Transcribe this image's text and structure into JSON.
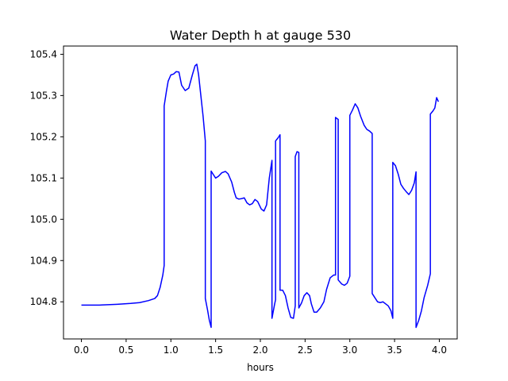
{
  "chart_data": {
    "type": "line",
    "title": "Water Depth h at gauge 530",
    "xlabel": "hours",
    "ylabel": "",
    "xlim": [
      -0.2,
      4.2
    ],
    "ylim": [
      104.71,
      105.42
    ],
    "x_ticks": [
      0.0,
      0.5,
      1.0,
      1.5,
      2.0,
      2.5,
      3.0,
      3.5,
      4.0
    ],
    "x_tick_labels": [
      "0.0",
      "0.5",
      "1.0",
      "1.5",
      "2.0",
      "2.5",
      "3.0",
      "3.5",
      "4.0"
    ],
    "y_ticks": [
      104.8,
      104.9,
      105.0,
      105.1,
      105.2,
      105.3,
      105.4
    ],
    "y_tick_labels": [
      "104.8",
      "104.9",
      "105.0",
      "105.1",
      "105.2",
      "105.3",
      "105.4"
    ],
    "grid": false,
    "series": [
      {
        "color": "#0000ff",
        "points": [
          [
            0.0,
            104.792
          ],
          [
            0.2,
            104.792
          ],
          [
            0.4,
            104.794
          ],
          [
            0.55,
            104.796
          ],
          [
            0.65,
            104.798
          ],
          [
            0.75,
            104.803
          ],
          [
            0.82,
            104.808
          ],
          [
            0.85,
            104.815
          ],
          [
            0.88,
            104.835
          ],
          [
            0.91,
            104.865
          ],
          [
            0.925,
            104.888
          ],
          [
            0.925,
            105.275
          ],
          [
            0.95,
            105.31
          ],
          [
            0.97,
            105.335
          ],
          [
            1.0,
            105.35
          ],
          [
            1.03,
            105.352
          ],
          [
            1.06,
            105.358
          ],
          [
            1.09,
            105.357
          ],
          [
            1.12,
            105.325
          ],
          [
            1.16,
            105.312
          ],
          [
            1.2,
            105.318
          ],
          [
            1.24,
            105.35
          ],
          [
            1.27,
            105.372
          ],
          [
            1.29,
            105.376
          ],
          [
            1.31,
            105.35
          ],
          [
            1.34,
            105.29
          ],
          [
            1.36,
            105.25
          ],
          [
            1.385,
            105.19
          ],
          [
            1.385,
            104.808
          ],
          [
            1.41,
            104.78
          ],
          [
            1.43,
            104.755
          ],
          [
            1.45,
            104.738
          ],
          [
            1.45,
            105.117
          ],
          [
            1.47,
            105.11
          ],
          [
            1.5,
            105.1
          ],
          [
            1.53,
            105.104
          ],
          [
            1.57,
            105.113
          ],
          [
            1.61,
            105.116
          ],
          [
            1.64,
            105.11
          ],
          [
            1.68,
            105.09
          ],
          [
            1.71,
            105.065
          ],
          [
            1.73,
            105.052
          ],
          [
            1.76,
            105.049
          ],
          [
            1.79,
            105.05
          ],
          [
            1.82,
            105.052
          ],
          [
            1.85,
            105.04
          ],
          [
            1.88,
            105.035
          ],
          [
            1.91,
            105.038
          ],
          [
            1.94,
            105.048
          ],
          [
            1.97,
            105.043
          ],
          [
            2.01,
            105.025
          ],
          [
            2.04,
            105.02
          ],
          [
            2.07,
            105.035
          ],
          [
            2.1,
            105.1
          ],
          [
            2.13,
            105.143
          ],
          [
            2.13,
            104.76
          ],
          [
            2.16,
            104.795
          ],
          [
            2.17,
            104.805
          ],
          [
            2.17,
            105.19
          ],
          [
            2.2,
            105.198
          ],
          [
            2.22,
            105.205
          ],
          [
            2.22,
            104.828
          ],
          [
            2.25,
            104.828
          ],
          [
            2.28,
            104.815
          ],
          [
            2.31,
            104.785
          ],
          [
            2.34,
            104.762
          ],
          [
            2.37,
            104.76
          ],
          [
            2.39,
            104.79
          ],
          [
            2.39,
            105.152
          ],
          [
            2.41,
            105.164
          ],
          [
            2.43,
            105.162
          ],
          [
            2.43,
            104.785
          ],
          [
            2.46,
            104.797
          ],
          [
            2.49,
            104.815
          ],
          [
            2.52,
            104.822
          ],
          [
            2.55,
            104.815
          ],
          [
            2.57,
            104.795
          ],
          [
            2.6,
            104.775
          ],
          [
            2.63,
            104.775
          ],
          [
            2.67,
            104.785
          ],
          [
            2.71,
            104.8
          ],
          [
            2.74,
            104.83
          ],
          [
            2.78,
            104.858
          ],
          [
            2.82,
            104.865
          ],
          [
            2.84,
            104.865
          ],
          [
            2.84,
            105.247
          ],
          [
            2.87,
            105.242
          ],
          [
            2.87,
            104.853
          ],
          [
            2.91,
            104.843
          ],
          [
            2.94,
            104.84
          ],
          [
            2.97,
            104.845
          ],
          [
            3.0,
            104.862
          ],
          [
            3.0,
            105.252
          ],
          [
            3.03,
            105.265
          ],
          [
            3.06,
            105.28
          ],
          [
            3.09,
            105.27
          ],
          [
            3.12,
            105.25
          ],
          [
            3.16,
            105.228
          ],
          [
            3.19,
            105.218
          ],
          [
            3.22,
            105.214
          ],
          [
            3.25,
            105.208
          ],
          [
            3.25,
            104.82
          ],
          [
            3.28,
            104.81
          ],
          [
            3.31,
            104.8
          ],
          [
            3.34,
            104.798
          ],
          [
            3.37,
            104.8
          ],
          [
            3.4,
            104.795
          ],
          [
            3.43,
            104.79
          ],
          [
            3.46,
            104.778
          ],
          [
            3.48,
            104.76
          ],
          [
            3.48,
            105.138
          ],
          [
            3.51,
            105.13
          ],
          [
            3.54,
            105.11
          ],
          [
            3.57,
            105.085
          ],
          [
            3.6,
            105.075
          ],
          [
            3.63,
            105.067
          ],
          [
            3.66,
            105.06
          ],
          [
            3.69,
            105.07
          ],
          [
            3.72,
            105.088
          ],
          [
            3.74,
            105.115
          ],
          [
            3.74,
            104.738
          ],
          [
            3.77,
            104.755
          ],
          [
            3.8,
            104.778
          ],
          [
            3.83,
            104.81
          ],
          [
            3.87,
            104.84
          ],
          [
            3.9,
            104.868
          ],
          [
            3.9,
            105.255
          ],
          [
            3.93,
            105.263
          ],
          [
            3.95,
            105.27
          ],
          [
            3.97,
            105.295
          ],
          [
            3.99,
            105.285
          ]
        ]
      }
    ]
  }
}
